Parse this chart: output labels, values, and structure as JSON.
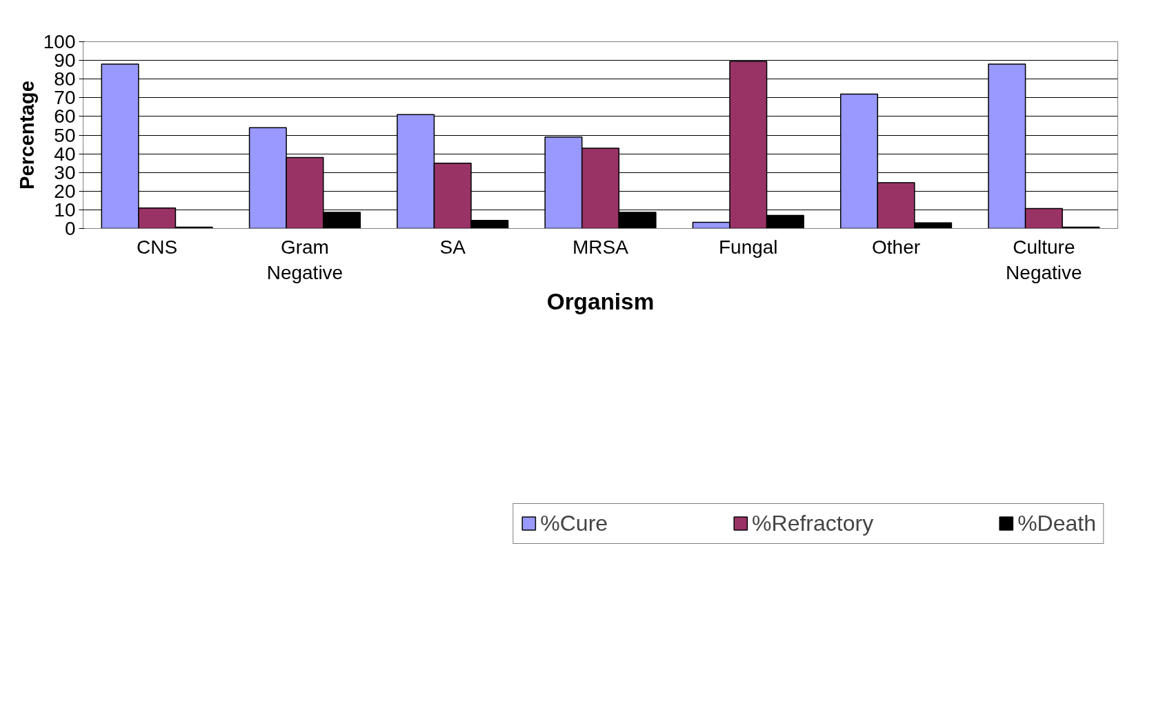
{
  "chart_data": {
    "type": "bar",
    "xlabel": "Organism",
    "ylabel": "Percentage",
    "categories": [
      "CNS",
      "Gram Negative",
      "SA",
      "MRSA",
      "Fungal",
      "Other",
      "Culture Negative"
    ],
    "series": [
      {
        "name": "%Cure",
        "color": "#9999ff",
        "values": [
          88,
          54,
          61,
          49,
          3.3,
          72,
          88
        ]
      },
      {
        "name": "%Refractory",
        "color": "#993366",
        "values": [
          11,
          38,
          35,
          43,
          89.5,
          24.5,
          10.7
        ]
      },
      {
        "name": "%Death",
        "color": "#000000",
        "values": [
          0.7,
          8.7,
          4.3,
          8.7,
          7,
          3,
          0.7
        ]
      }
    ],
    "ylim": [
      0,
      100
    ],
    "yticks": [
      0,
      10,
      20,
      30,
      40,
      50,
      60,
      70,
      80,
      90,
      100
    ],
    "grid": "y",
    "legend": "bottom"
  }
}
